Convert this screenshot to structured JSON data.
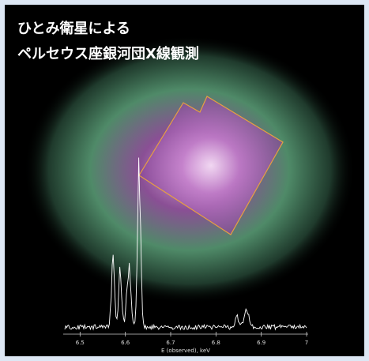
{
  "title": {
    "lines": [
      "ひとみ衛星による",
      "ペルセウス座銀河団X線観測"
    ]
  },
  "spectrum": {
    "xticks": [
      6.5,
      6.6,
      6.7,
      6.8,
      6.9,
      7
    ],
    "xlim": [
      6.4,
      7
    ],
    "xlabel": "E (observed), keV"
  }
}
